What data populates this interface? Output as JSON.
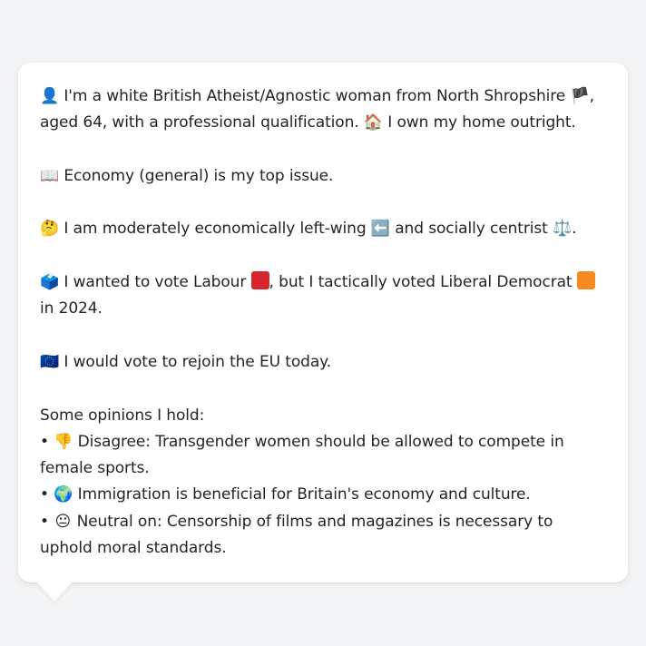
{
  "profile": {
    "line1_icon": "👤",
    "line1_a": "I'm a white British Atheist/Agnostic woman from North Shropshire",
    "line1_flag": "🏴",
    "line1_b": ", aged 64, with a professional qualification.",
    "home_icon": "🏠",
    "line1_c": "I own my home outright.",
    "issue_icon": "📖",
    "issue_text": "Economy (general) is my top issue.",
    "politics_icon": "🤔",
    "politics_a": "I am moderately economically left-wing",
    "left_icon": "⬅️",
    "politics_b": "and socially centrist",
    "scale_icon": "⚖️",
    "politics_c": ".",
    "vote_icon": "🗳️",
    "vote_a": "I wanted to vote Labour",
    "labour_color": "#d8252d",
    "vote_b": ", but I tactically voted Liberal Democrat",
    "libdem_color": "#f58a1f",
    "vote_c": "in 2024.",
    "eu_icon": "🇪🇺",
    "eu_text": "I would vote to rejoin the EU today.",
    "opinions_heading": "Some opinions I hold:",
    "opinions": [
      {
        "bullet": "•",
        "icon": "👎",
        "text": "Disagree: Transgender women should be allowed to compete in female sports."
      },
      {
        "bullet": "•",
        "icon": "🌍",
        "text": "Immigration is beneficial for Britain's economy and culture."
      },
      {
        "bullet": "•",
        "icon": "😐",
        "text": "Neutral on: Censorship of films and magazines is necessary to uphold moral standards."
      }
    ]
  }
}
